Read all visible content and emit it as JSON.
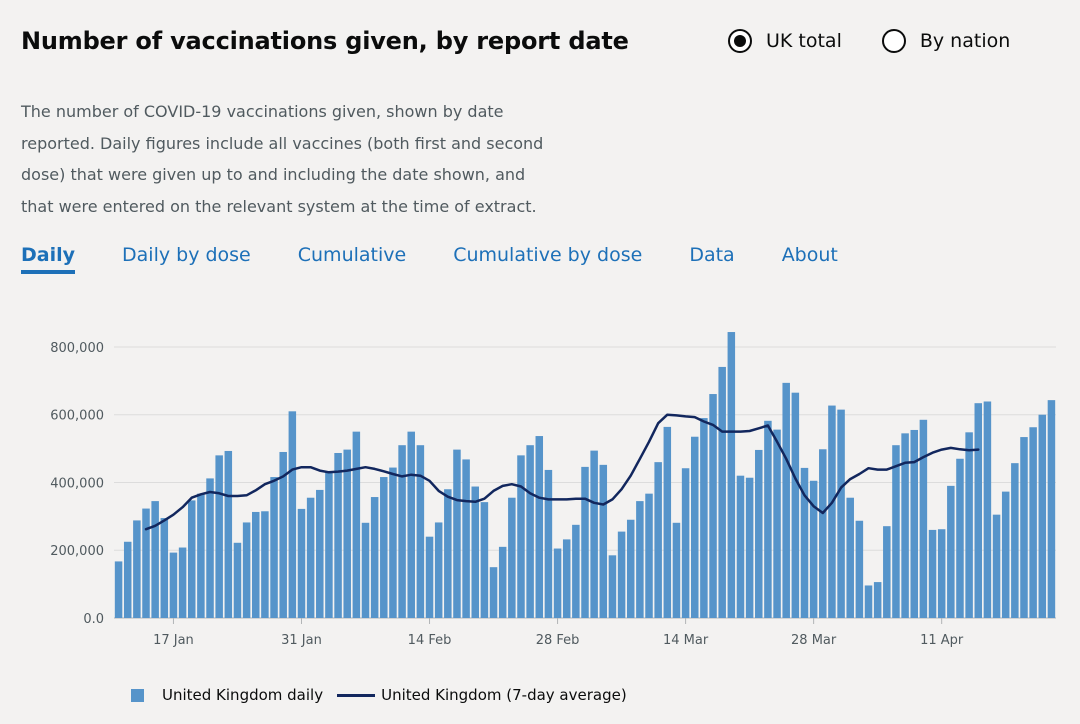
{
  "card": {
    "title": "Number of vaccinations given, by report date",
    "description": "The number of COVID-19 vaccinations given, shown by date reported. Daily figures include all vaccines (both first and second dose) that were given up to and including the date shown, and that were entered on the relevant system at the time of extract."
  },
  "view_options": [
    {
      "label": "UK total",
      "selected": true
    },
    {
      "label": "By nation",
      "selected": false
    }
  ],
  "tabs": [
    {
      "label": "Daily",
      "active": true
    },
    {
      "label": "Daily by dose",
      "active": false
    },
    {
      "label": "Cumulative",
      "active": false
    },
    {
      "label": "Cumulative by dose",
      "active": false
    },
    {
      "label": "Data",
      "active": false
    },
    {
      "label": "About",
      "active": false
    }
  ],
  "legend": {
    "daily_label": "United Kingdom daily",
    "average_label": "United Kingdom (7-day average)"
  },
  "colors": {
    "bar": "#5694ca",
    "average_line": "#12275e",
    "link": "#1d70b8",
    "background": "#f3f2f1"
  },
  "chart_data": {
    "type": "bar",
    "start_date": "2021-01-11",
    "x_tick_labels": [
      {
        "date": "2021-01-17",
        "label": "17 Jan"
      },
      {
        "date": "2021-01-31",
        "label": "31 Jan"
      },
      {
        "date": "2021-02-14",
        "label": "14 Feb"
      },
      {
        "date": "2021-02-28",
        "label": "28 Feb"
      },
      {
        "date": "2021-03-14",
        "label": "14 Mar"
      },
      {
        "date": "2021-03-28",
        "label": "28 Mar"
      },
      {
        "date": "2021-04-11",
        "label": "11 Apr"
      }
    ],
    "y_ticks": [
      {
        "value": 0,
        "label": "0.0"
      },
      {
        "value": 200000,
        "label": "200,000"
      },
      {
        "value": 400000,
        "label": "400,000"
      },
      {
        "value": 600000,
        "label": "600,000"
      },
      {
        "value": 800000,
        "label": "800,000"
      }
    ],
    "ylim": [
      0,
      850000
    ],
    "grid": true,
    "legend_position": "bottom-left",
    "series": [
      {
        "name": "United Kingdom daily",
        "type": "bar",
        "values": [
          167000,
          225000,
          288000,
          323000,
          345000,
          295000,
          193000,
          208000,
          347000,
          367000,
          412000,
          480000,
          493000,
          222000,
          282000,
          313000,
          315000,
          416000,
          490000,
          610000,
          322000,
          355000,
          378000,
          432000,
          487000,
          497000,
          550000,
          281000,
          357000,
          416000,
          444000,
          510000,
          550000,
          510000,
          240000,
          282000,
          380000,
          497000,
          468000,
          388000,
          342000,
          150000,
          210000,
          355000,
          480000,
          510000,
          537000,
          437000,
          205000,
          232000,
          275000,
          446000,
          494000,
          452000,
          185000,
          255000,
          290000,
          345000,
          367000,
          460000,
          564000,
          281000,
          442000,
          535000,
          590000,
          661000,
          741000,
          844000,
          420000,
          414000,
          496000,
          582000,
          556000,
          694000,
          665000,
          443000,
          405000,
          498000,
          627000,
          615000,
          355000,
          287000,
          96000,
          106000,
          271000,
          510000,
          545000,
          555000,
          585000,
          260000,
          262000,
          390000,
          470000,
          548000,
          634000,
          639000,
          305000,
          373000,
          457000,
          534000,
          563000,
          600000,
          643000
        ]
      },
      {
        "name": "United Kingdom (7-day average)",
        "type": "line",
        "start_index": 3,
        "values": [
          262000,
          272000,
          288000,
          305000,
          327000,
          355000,
          365000,
          372000,
          368000,
          360000,
          360000,
          362000,
          377000,
          395000,
          405000,
          418000,
          438000,
          445000,
          445000,
          435000,
          430000,
          432000,
          435000,
          440000,
          445000,
          440000,
          433000,
          425000,
          418000,
          423000,
          420000,
          405000,
          375000,
          358000,
          348000,
          345000,
          343000,
          352000,
          375000,
          390000,
          395000,
          388000,
          368000,
          355000,
          350000,
          350000,
          350000,
          352000,
          352000,
          340000,
          335000,
          350000,
          380000,
          420000,
          470000,
          520000,
          575000,
          600000,
          598000,
          595000,
          593000,
          580000,
          570000,
          550000,
          550000,
          550000,
          552000,
          560000,
          568000,
          520000,
          470000,
          412000,
          362000,
          330000,
          310000,
          340000,
          385000,
          410000,
          425000,
          442000,
          438000,
          438000,
          448000,
          458000,
          460000,
          475000,
          488000,
          497000,
          502000,
          498000,
          495000,
          497000
        ]
      }
    ]
  }
}
